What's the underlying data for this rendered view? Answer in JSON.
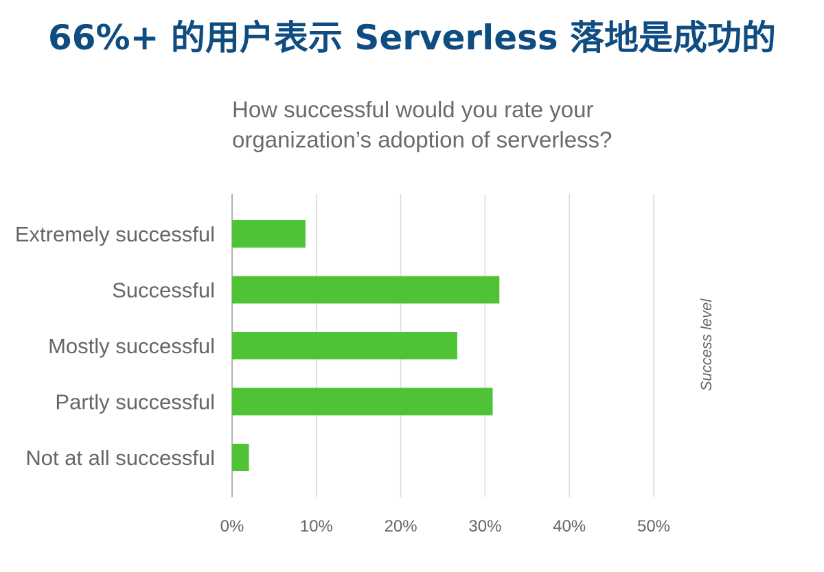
{
  "headline": "66%+ 的用户表示 Serverless 落地是成功的",
  "chart_data": {
    "type": "bar",
    "orientation": "horizontal",
    "title_lines": [
      "How successful would you rate your",
      "organization’s adoption of serverless?"
    ],
    "categories": [
      "Extremely successful",
      "Successful",
      "Mostly successful",
      "Partly successful",
      "Not at all successful"
    ],
    "values": [
      8.7,
      31.7,
      26.7,
      30.9,
      2.0
    ],
    "value_unit": "%",
    "xlim": [
      0,
      50
    ],
    "xticks": [
      "0%",
      "10%",
      "20%",
      "30%",
      "40%",
      "50%"
    ],
    "category_axis_label": "Success level",
    "grid": "vertical",
    "bar_color": "#4ec336",
    "grid_color": "#d9d9d9",
    "headline_color": "#0f4c81"
  }
}
